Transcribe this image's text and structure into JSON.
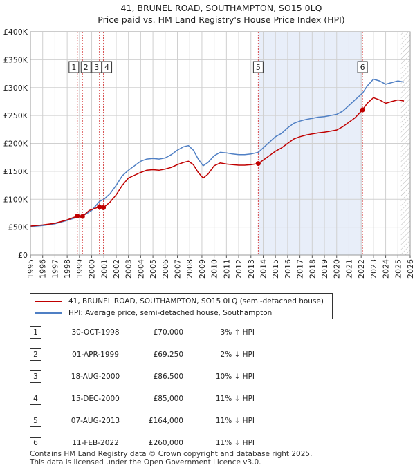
{
  "colors": {
    "price_line": "#c00000",
    "hpi_line": "#4f7fc4",
    "shade": "#e8eef9",
    "grid": "#d0d0d0",
    "marker_line": "#d94a4a"
  },
  "chart_data": {
    "type": "line",
    "title": "41, BRUNEL ROAD, SOUTHAMPTON, SO15 0LQ",
    "subtitle": "Price paid vs. HM Land Registry's House Price Index (HPI)",
    "xlim": [
      1995.0,
      2026.0
    ],
    "ylim": [
      0,
      400000
    ],
    "y_ticks": [
      0,
      50000,
      100000,
      150000,
      200000,
      250000,
      300000,
      350000,
      400000
    ],
    "y_tick_labels": [
      "£0",
      "£50K",
      "£100K",
      "£150K",
      "£200K",
      "£250K",
      "£300K",
      "£350K",
      "£400K"
    ],
    "x_ticks": [
      1995,
      1996,
      1997,
      1998,
      1999,
      2000,
      2001,
      2002,
      2003,
      2004,
      2005,
      2006,
      2007,
      2008,
      2009,
      2010,
      2011,
      2012,
      2013,
      2014,
      2015,
      2016,
      2017,
      2018,
      2019,
      2020,
      2021,
      2022,
      2023,
      2024,
      2025,
      2026
    ],
    "x_tick_labels": [
      "1995",
      "1996",
      "1997",
      "1998",
      "1999",
      "2000",
      "2001",
      "2002",
      "2003",
      "2004",
      "2005",
      "2006",
      "2007",
      "2008",
      "2009",
      "2010",
      "2011",
      "2012",
      "2013",
      "2014",
      "2015",
      "2016",
      "2017",
      "2018",
      "2019",
      "2020",
      "2021",
      "2022",
      "2023",
      "2024",
      "2025",
      "2026"
    ],
    "shaded_span": [
      2013.6,
      2022.11
    ],
    "hatched_from": 2025.25,
    "series": [
      {
        "name": "41, BRUNEL ROAD, SOUTHAMPTON, SO15 0LQ (semi-detached house)",
        "color": "#c00000",
        "points": [
          [
            1995.0,
            52000
          ],
          [
            1996.0,
            54000
          ],
          [
            1997.0,
            57000
          ],
          [
            1998.0,
            63000
          ],
          [
            1998.83,
            70000
          ],
          [
            1999.25,
            69250
          ],
          [
            1999.8,
            80000
          ],
          [
            2000.63,
            86500
          ],
          [
            2000.96,
            85000
          ],
          [
            2001.5,
            95000
          ],
          [
            2002.0,
            108000
          ],
          [
            2002.5,
            125000
          ],
          [
            2003.0,
            138000
          ],
          [
            2003.5,
            143000
          ],
          [
            2004.0,
            148000
          ],
          [
            2004.5,
            152000
          ],
          [
            2005.0,
            153000
          ],
          [
            2005.5,
            152000
          ],
          [
            2006.0,
            154000
          ],
          [
            2006.5,
            157000
          ],
          [
            2007.0,
            162000
          ],
          [
            2007.5,
            166000
          ],
          [
            2007.9,
            168000
          ],
          [
            2008.3,
            162000
          ],
          [
            2008.7,
            148000
          ],
          [
            2009.1,
            138000
          ],
          [
            2009.5,
            145000
          ],
          [
            2010.0,
            160000
          ],
          [
            2010.5,
            165000
          ],
          [
            2011.0,
            163000
          ],
          [
            2011.5,
            162000
          ],
          [
            2012.0,
            161000
          ],
          [
            2012.5,
            161000
          ],
          [
            2013.0,
            162000
          ],
          [
            2013.6,
            164000
          ],
          [
            2014.0,
            170000
          ],
          [
            2014.5,
            178000
          ],
          [
            2015.0,
            186000
          ],
          [
            2015.5,
            192000
          ],
          [
            2016.0,
            200000
          ],
          [
            2016.5,
            208000
          ],
          [
            2017.0,
            212000
          ],
          [
            2017.5,
            215000
          ],
          [
            2018.0,
            217000
          ],
          [
            2018.5,
            219000
          ],
          [
            2019.0,
            220000
          ],
          [
            2019.5,
            222000
          ],
          [
            2020.0,
            224000
          ],
          [
            2020.5,
            230000
          ],
          [
            2021.0,
            238000
          ],
          [
            2021.5,
            246000
          ],
          [
            2022.11,
            260000
          ],
          [
            2022.5,
            272000
          ],
          [
            2023.0,
            282000
          ],
          [
            2023.5,
            278000
          ],
          [
            2024.0,
            272000
          ],
          [
            2024.5,
            275000
          ],
          [
            2025.0,
            278000
          ],
          [
            2025.5,
            276000
          ]
        ]
      },
      {
        "name": "HPI: Average price, semi-detached house, Southampton",
        "color": "#4f7fc4",
        "points": [
          [
            1995.0,
            51000
          ],
          [
            1996.0,
            53000
          ],
          [
            1997.0,
            56000
          ],
          [
            1998.0,
            62000
          ],
          [
            1998.83,
            68000
          ],
          [
            1999.5,
            73000
          ],
          [
            2000.0,
            80000
          ],
          [
            2000.63,
            96000
          ],
          [
            2001.0,
            100000
          ],
          [
            2001.5,
            110000
          ],
          [
            2002.0,
            125000
          ],
          [
            2002.5,
            142000
          ],
          [
            2003.0,
            152000
          ],
          [
            2003.5,
            160000
          ],
          [
            2004.0,
            168000
          ],
          [
            2004.5,
            172000
          ],
          [
            2005.0,
            173000
          ],
          [
            2005.5,
            172000
          ],
          [
            2006.0,
            174000
          ],
          [
            2006.5,
            180000
          ],
          [
            2007.0,
            188000
          ],
          [
            2007.5,
            194000
          ],
          [
            2007.9,
            196000
          ],
          [
            2008.3,
            188000
          ],
          [
            2008.7,
            172000
          ],
          [
            2009.1,
            160000
          ],
          [
            2009.5,
            166000
          ],
          [
            2010.0,
            178000
          ],
          [
            2010.5,
            184000
          ],
          [
            2011.0,
            183000
          ],
          [
            2011.5,
            181000
          ],
          [
            2012.0,
            180000
          ],
          [
            2012.5,
            180000
          ],
          [
            2013.0,
            181000
          ],
          [
            2013.6,
            184000
          ],
          [
            2014.0,
            192000
          ],
          [
            2014.5,
            202000
          ],
          [
            2015.0,
            212000
          ],
          [
            2015.5,
            218000
          ],
          [
            2016.0,
            228000
          ],
          [
            2016.5,
            236000
          ],
          [
            2017.0,
            240000
          ],
          [
            2017.5,
            243000
          ],
          [
            2018.0,
            245000
          ],
          [
            2018.5,
            247000
          ],
          [
            2019.0,
            248000
          ],
          [
            2019.5,
            250000
          ],
          [
            2020.0,
            252000
          ],
          [
            2020.5,
            258000
          ],
          [
            2021.0,
            268000
          ],
          [
            2021.5,
            278000
          ],
          [
            2022.11,
            290000
          ],
          [
            2022.5,
            303000
          ],
          [
            2023.0,
            315000
          ],
          [
            2023.5,
            312000
          ],
          [
            2024.0,
            306000
          ],
          [
            2024.5,
            309000
          ],
          [
            2025.0,
            312000
          ],
          [
            2025.5,
            310000
          ]
        ]
      }
    ],
    "transactions": [
      {
        "num": "1",
        "year": 1998.83,
        "price": 70000
      },
      {
        "num": "2",
        "year": 1999.25,
        "price": 69250
      },
      {
        "num": "3",
        "year": 2000.63,
        "price": 86500
      },
      {
        "num": "4",
        "year": 2000.96,
        "price": 85000
      },
      {
        "num": "5",
        "year": 2013.6,
        "price": 164000
      },
      {
        "num": "6",
        "year": 2022.11,
        "price": 260000
      }
    ]
  },
  "legend": {
    "price_label": "41, BRUNEL ROAD, SOUTHAMPTON, SO15 0LQ (semi-detached house)",
    "hpi_label": "HPI: Average price, semi-detached house, Southampton"
  },
  "table": [
    {
      "num": "1",
      "date": "30-OCT-1998",
      "price": "£70,000",
      "rel": "3% ↑ HPI"
    },
    {
      "num": "2",
      "date": "01-APR-1999",
      "price": "£69,250",
      "rel": "2% ↓ HPI"
    },
    {
      "num": "3",
      "date": "18-AUG-2000",
      "price": "£86,500",
      "rel": "10% ↓ HPI"
    },
    {
      "num": "4",
      "date": "15-DEC-2000",
      "price": "£85,000",
      "rel": "11% ↓ HPI"
    },
    {
      "num": "5",
      "date": "07-AUG-2013",
      "price": "£164,000",
      "rel": "11% ↓ HPI"
    },
    {
      "num": "6",
      "date": "11-FEB-2022",
      "price": "£260,000",
      "rel": "11% ↓ HPI"
    }
  ],
  "footer": {
    "line1": "Contains HM Land Registry data © Crown copyright and database right 2025.",
    "line2": "This data is licensed under the Open Government Licence v3.0."
  }
}
